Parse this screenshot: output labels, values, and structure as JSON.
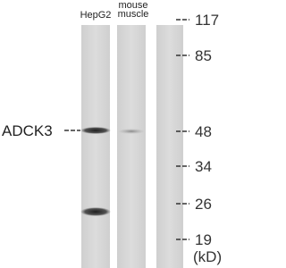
{
  "lane_labels": [
    [
      "HepG2"
    ],
    [
      "mouse",
      "muscle"
    ]
  ],
  "protein": "ADCK3",
  "markers": [
    117,
    85,
    48,
    34,
    26,
    19
  ],
  "unit": "(kD)"
}
